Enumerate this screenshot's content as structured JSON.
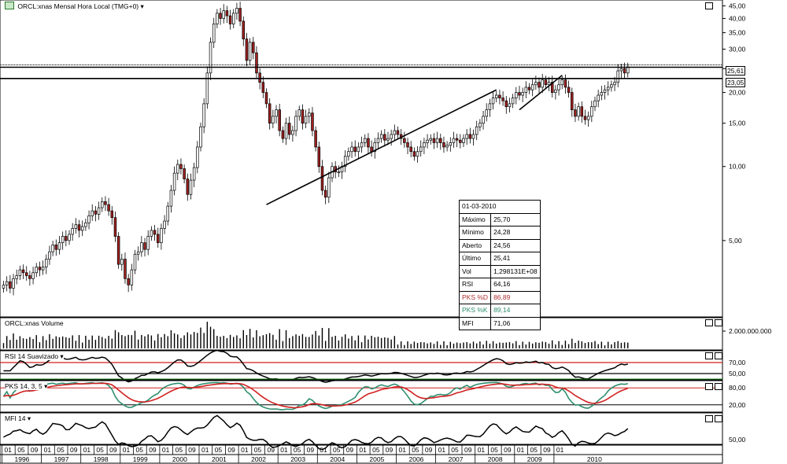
{
  "title": "ORCL:xnas Mensal Hora Local (TMG+0)",
  "title_menu_glyph": "▾",
  "chart_data": {
    "type": "candlestick",
    "interval": "monthly",
    "y_scale": "log",
    "price_axis": {
      "range": [
        2.5,
        46.5
      ],
      "ticks": [
        "45,00",
        "40,00",
        "35,00",
        "30,00",
        "25,00",
        "20,00",
        "15,00",
        "10,00",
        "5,00"
      ],
      "tick_values": [
        45,
        40,
        35,
        30,
        25,
        20,
        15,
        10,
        5
      ]
    },
    "price_tags": [
      {
        "label": "25,61",
        "value": 25.61
      },
      {
        "label": "23,05",
        "value": 23.05
      }
    ],
    "horizontal_lines": [
      {
        "value": 25.61,
        "style": "dotted"
      },
      {
        "value": 25.61,
        "style": "solid"
      },
      {
        "value": 23.05,
        "style": "solid"
      }
    ],
    "trend_lines": [
      {
        "from": [
          "2002-09",
          7.0
        ],
        "to": [
          "2008-07",
          20.5
        ]
      },
      {
        "from": [
          "2009-02",
          17.0
        ],
        "to": [
          "2010-03",
          23.5
        ]
      }
    ],
    "closes": [
      3.3,
      3.4,
      3.2,
      3.5,
      3.6,
      3.8,
      3.7,
      3.6,
      3.5,
      3.7,
      3.9,
      3.8,
      3.9,
      4.2,
      4.5,
      4.8,
      4.6,
      4.9,
      5.2,
      5.0,
      5.3,
      5.6,
      5.8,
      5.5,
      5.7,
      5.9,
      6.3,
      6.6,
      6.4,
      6.8,
      7.2,
      7.0,
      6.6,
      6.2,
      5.2,
      4.0,
      4.2,
      3.5,
      3.3,
      3.8,
      4.4,
      4.5,
      4.9,
      4.6,
      5.2,
      5.5,
      5.3,
      4.9,
      5.6,
      6.0,
      6.9,
      8.0,
      9.4,
      10.2,
      9.8,
      8.9,
      7.7,
      8.8,
      9.9,
      12.0,
      14.5,
      18.0,
      24.0,
      32.0,
      38.0,
      42.0,
      40.0,
      43.0,
      41.0,
      38.0,
      42.0,
      44.0,
      39.0,
      33.0,
      27.0,
      32.0,
      29.0,
      24.0,
      22.0,
      20.0,
      18.0,
      15.0,
      16.0,
      17.0,
      14.0,
      13.0,
      15.0,
      13.5,
      14.0,
      16.0,
      17.0,
      15.0,
      16.0,
      16.5,
      14.0,
      12.0,
      10.0,
      8.0,
      7.5,
      9.0,
      10.0,
      9.5,
      9.5,
      10.0,
      11.0,
      11.5,
      12.0,
      11.5,
      12.0,
      12.5,
      13.0,
      12.0,
      11.5,
      12.5,
      13.0,
      13.5,
      12.8,
      13.0,
      13.5,
      14.0,
      13.5,
      13.0,
      12.5,
      12.0,
      11.5,
      11.0,
      11.5,
      12.0,
      12.5,
      12.8,
      13.0,
      12.5,
      13.0,
      12.5,
      12.0,
      12.2,
      12.5,
      13.0,
      12.8,
      12.5,
      13.0,
      13.5,
      13.0,
      13.5,
      14.5,
      15.0,
      16.0,
      17.0,
      18.0,
      19.0,
      19.5,
      19.0,
      18.5,
      17.5,
      18.0,
      19.0,
      20.0,
      19.5,
      20.0,
      21.0,
      20.5,
      21.5,
      22.0,
      21.0,
      22.5,
      21.5,
      22.0,
      20.0,
      20.5,
      21.5,
      22.5,
      21.0,
      20.0,
      17.0,
      16.0,
      17.5,
      16.0,
      15.5,
      16.0,
      17.5,
      18.5,
      19.5,
      20.0,
      20.5,
      21.0,
      21.5,
      22.0,
      24.5,
      25.0,
      24.0,
      25.4
    ],
    "start_month": "1996-01",
    "last_bar_date": "01-03-2010",
    "x_axis": {
      "months": [
        "01",
        "05",
        "09",
        "01",
        "05",
        "09",
        "01",
        "05",
        "09",
        "01",
        "05",
        "09",
        "01",
        "05",
        "09",
        "01",
        "05",
        "09",
        "01",
        "05",
        "09",
        "01",
        "05",
        "09",
        "01",
        "05",
        "09",
        "01",
        "05",
        "09",
        "01",
        "05",
        "09",
        "01",
        "05",
        "09",
        "01",
        "05",
        "09",
        "01",
        "05",
        "09",
        "01"
      ],
      "years": [
        "1996",
        "1997",
        "1998",
        "1999",
        "2000",
        "2001",
        "2002",
        "2003",
        "2004",
        "2005",
        "2006",
        "2007",
        "2008",
        "2009",
        "2010"
      ]
    },
    "tooltip": {
      "date": "01-03-2010",
      "rows": [
        {
          "key": "Máximo",
          "value": "25,70"
        },
        {
          "key": "Mínimo",
          "value": "24,28"
        },
        {
          "key": "Aberto",
          "value": "24,56"
        },
        {
          "key": "Último",
          "value": "25,41"
        },
        {
          "key": "Vol",
          "value": "1,298131E+08"
        },
        {
          "key": "RSI",
          "value": "64,16"
        },
        {
          "key": "PKS %D",
          "value": "86,89"
        },
        {
          "key": "PKS %K",
          "value": "89,14"
        },
        {
          "key": "MFI",
          "value": "71,06"
        }
      ]
    },
    "volume_panel": {
      "label": "ORCL:xnas Volume",
      "tick": "2.000.000.000"
    },
    "rsi_panel": {
      "label": "RSI 14 Suavizado",
      "ticks": [
        "70,00",
        "50,00"
      ],
      "levels": [
        70,
        50
      ],
      "color": "#d02020"
    },
    "pks_panel": {
      "label": "PKS 14, 3, 5",
      "ticks": [
        "80,00",
        "20,00"
      ],
      "levels": [
        80,
        20
      ],
      "d_color": "#d02020",
      "k_color": "#2f8f6f"
    },
    "mfi_panel": {
      "label": "MFI 14",
      "ticks": [
        "50,00"
      ]
    }
  },
  "colors": {
    "up_candle": "#2a2a2a",
    "down_candle": "#a02020",
    "grid": "#000000",
    "rsi_level_line": "#d02020",
    "green_level": "#208020"
  }
}
